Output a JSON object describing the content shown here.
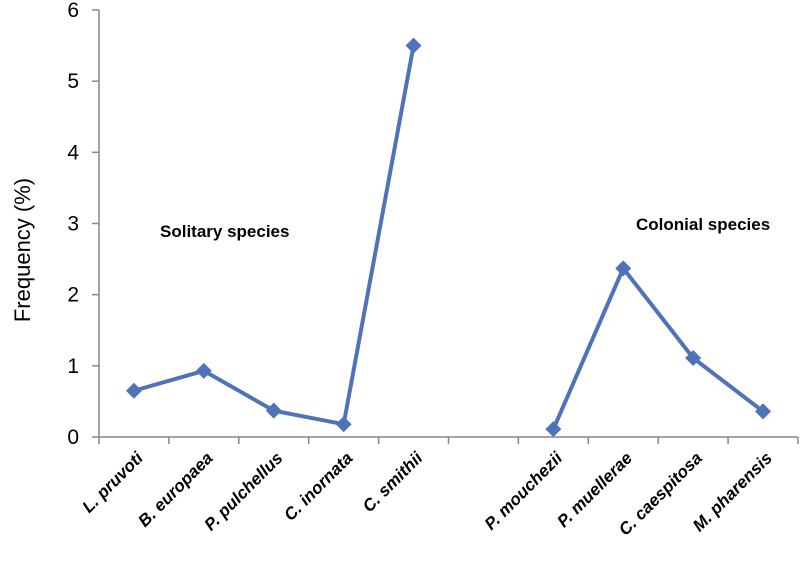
{
  "chart_data": {
    "type": "line",
    "categories": [
      "L. pruvoti",
      "B. europaea",
      "P. pulchellus",
      "C. inornata",
      "C. smithii",
      "",
      "P. mouchezii",
      "P. muellerae",
      "C. caespitosa",
      "M. pharensis"
    ],
    "series": [
      {
        "values": [
          0.65,
          0.93,
          0.37,
          0.18,
          5.5,
          null,
          0.11,
          2.37,
          1.11,
          0.36
        ]
      }
    ],
    "ylabel": "Frequency  (%)",
    "xlabel": "",
    "ylim": [
      0,
      6
    ],
    "yticks": [
      0,
      1,
      2,
      3,
      4,
      5,
      6
    ],
    "annotations": [
      "Solitary species",
      "Colonial species"
    ],
    "colors": {
      "series": "#4f73b8",
      "axis": "#878787"
    }
  }
}
